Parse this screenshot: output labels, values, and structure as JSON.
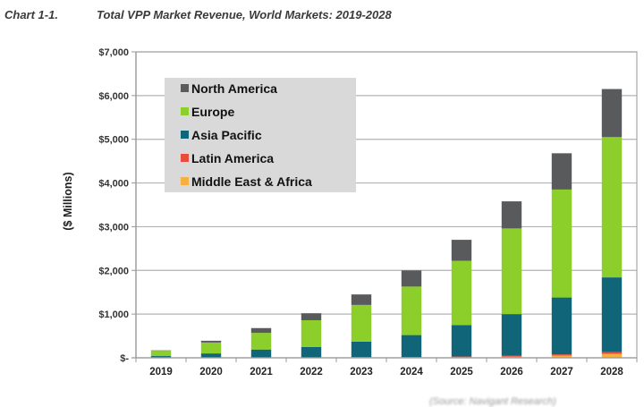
{
  "header": {
    "chart_label": "Chart 1-1.",
    "title": "Total VPP Market Revenue, World Markets: 2019-2028"
  },
  "source_note": "(Source: Navigant Research)",
  "chart_data": {
    "type": "bar",
    "stacked": true,
    "title": "Total VPP Market Revenue, World Markets: 2019-2028",
    "xlabel": "",
    "ylabel": "($ Millions)",
    "ylim": [
      0,
      7000
    ],
    "yticks": [
      0,
      1000,
      2000,
      3000,
      4000,
      5000,
      6000,
      7000
    ],
    "ytick_labels": [
      "$-",
      "$1,000",
      "$2,000",
      "$3,000",
      "$4,000",
      "$5,000",
      "$6,000",
      "$7,000"
    ],
    "grid": true,
    "legend_position": "top-left",
    "categories": [
      "2019",
      "2020",
      "2021",
      "2022",
      "2023",
      "2024",
      "2025",
      "2026",
      "2027",
      "2028"
    ],
    "series": [
      {
        "name": "Middle East & Africa",
        "color": "#f5b041",
        "values": [
          1,
          2,
          3,
          5,
          8,
          10,
          15,
          25,
          50,
          90
        ]
      },
      {
        "name": "Latin America",
        "color": "#e74c3c",
        "values": [
          1,
          2,
          3,
          5,
          7,
          10,
          15,
          20,
          30,
          40
        ]
      },
      {
        "name": "Asia Pacific",
        "color": "#106579",
        "values": [
          38,
          96,
          184,
          240,
          355,
          500,
          720,
          955,
          1300,
          1710
        ]
      },
      {
        "name": "Europe",
        "color": "#8ccf2a",
        "values": [
          120,
          250,
          380,
          610,
          840,
          1110,
          1470,
          1960,
          2470,
          3210
        ]
      },
      {
        "name": "North America",
        "color": "#585a5c",
        "values": [
          10,
          40,
          110,
          160,
          240,
          370,
          480,
          620,
          830,
          1100
        ]
      }
    ],
    "legend_order": [
      "North America",
      "Europe",
      "Asia Pacific",
      "Latin America",
      "Middle East & Africa"
    ]
  }
}
